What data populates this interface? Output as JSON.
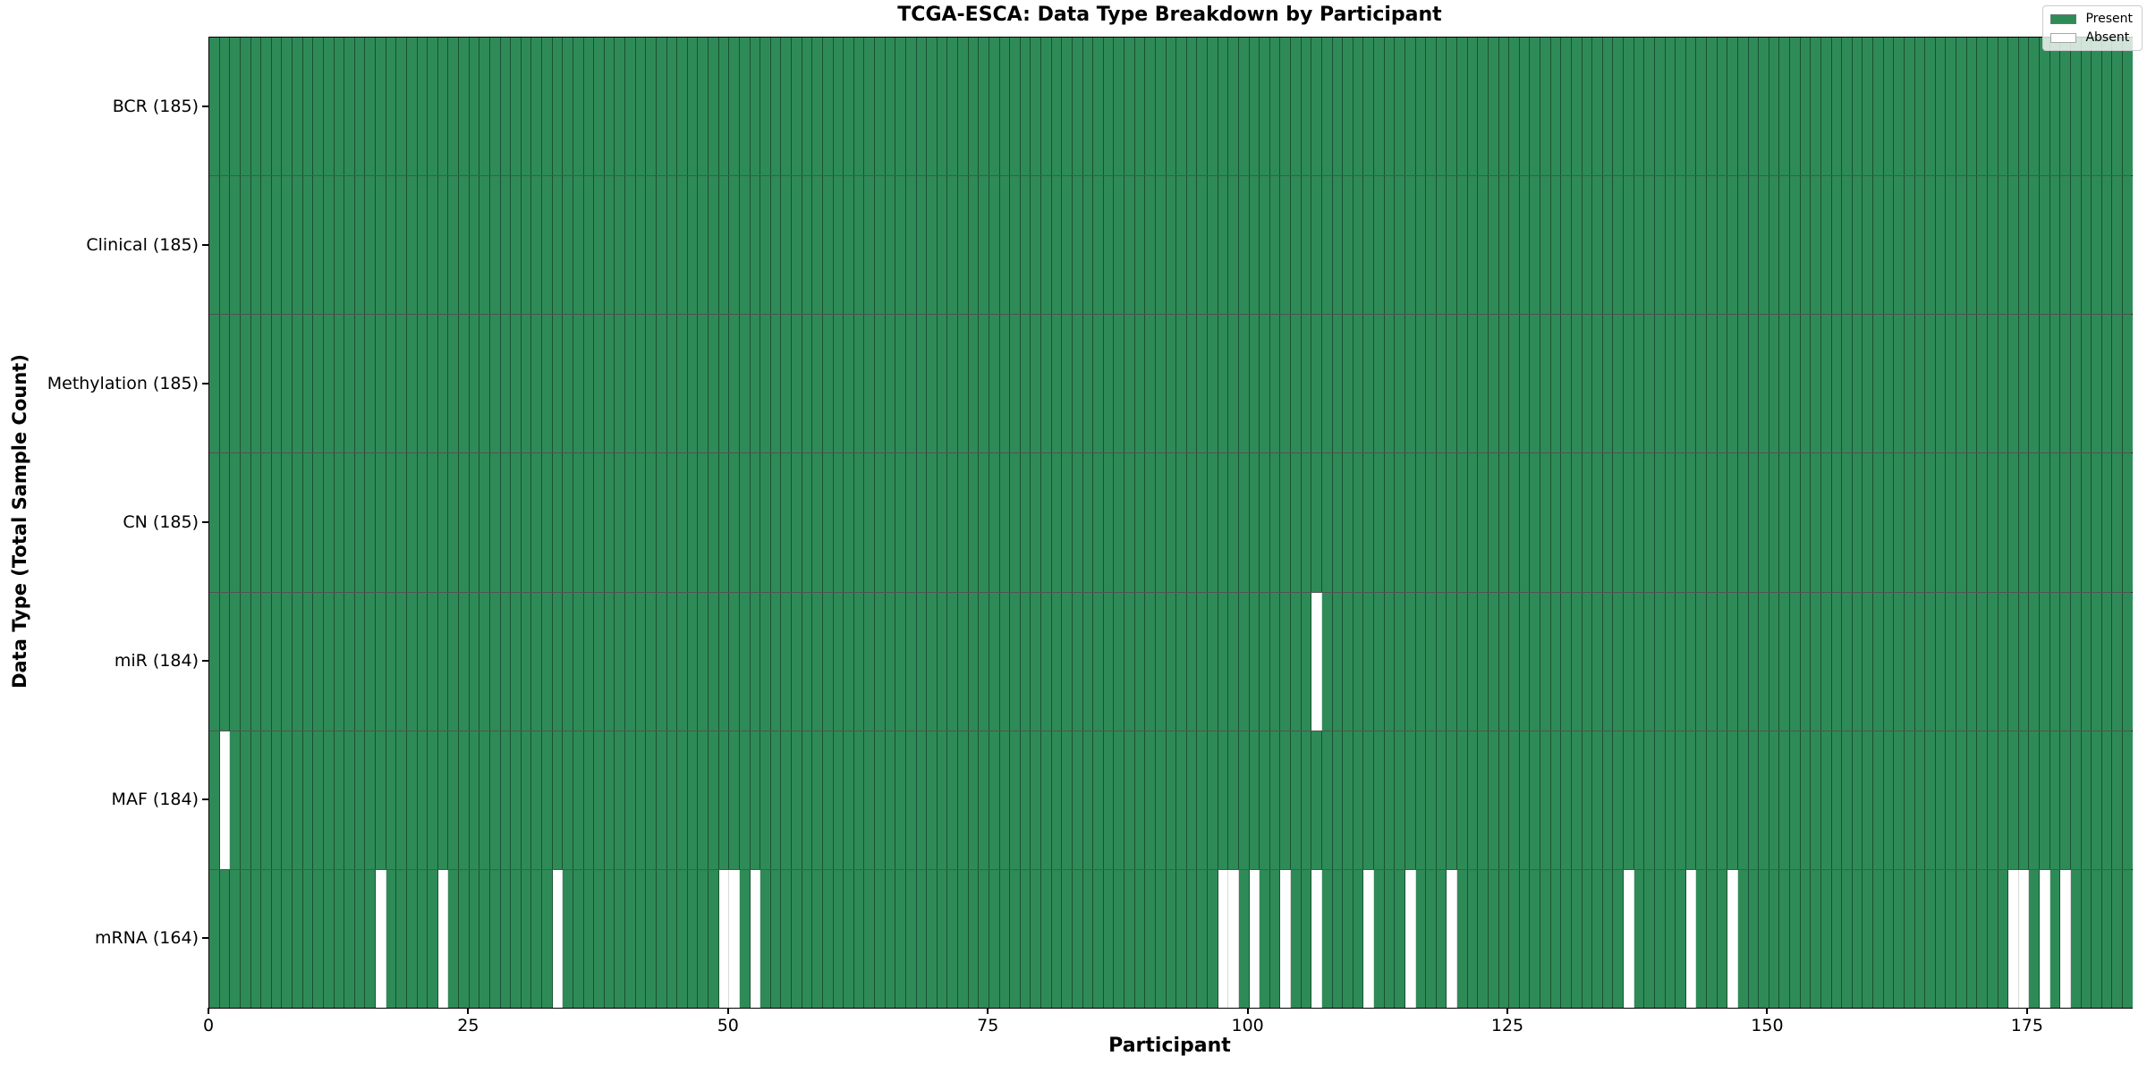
{
  "chart_data": {
    "type": "heatmap",
    "title": "TCGA-ESCA: Data Type Breakdown by Participant",
    "xlabel": "Participant",
    "ylabel": "Data Type (Total Sample Count)",
    "n_participants": 185,
    "x_ticks": [
      0,
      25,
      50,
      75,
      100,
      125,
      150,
      175
    ],
    "x_range": [
      0,
      185
    ],
    "grid": "cell-borders",
    "legend_position": "upper right",
    "legend": [
      {
        "label": "Present",
        "color": "#2E8B57"
      },
      {
        "label": "Absent",
        "color": "#FFFFFF"
      }
    ],
    "rows": [
      {
        "name": "BCR",
        "label": "BCR (185)",
        "total": 185,
        "absent": []
      },
      {
        "name": "Clinical",
        "label": "Clinical (185)",
        "total": 185,
        "absent": []
      },
      {
        "name": "Methylation",
        "label": "Methylation (185)",
        "total": 185,
        "absent": []
      },
      {
        "name": "CN",
        "label": "CN (185)",
        "total": 185,
        "absent": []
      },
      {
        "name": "miR",
        "label": "miR (184)",
        "total": 184,
        "absent": [
          106
        ]
      },
      {
        "name": "MAF",
        "label": "MAF (184)",
        "total": 184,
        "absent": [
          1
        ]
      },
      {
        "name": "mRNA",
        "label": "mRNA (164)",
        "total": 164,
        "absent": [
          16,
          22,
          33,
          49,
          50,
          52,
          97,
          98,
          100,
          103,
          106,
          111,
          115,
          119,
          136,
          142,
          146,
          173,
          174,
          176,
          178
        ]
      }
    ]
  }
}
